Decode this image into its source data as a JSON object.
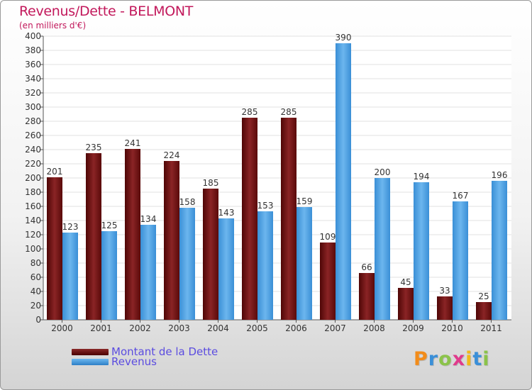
{
  "chart_data": {
    "type": "bar",
    "title": "Revenus/Dette - BELMONT",
    "subtitle": "(en milliers d'€)",
    "categories": [
      "2000",
      "2001",
      "2002",
      "2003",
      "2004",
      "2005",
      "2006",
      "2007",
      "2008",
      "2009",
      "2010",
      "2011"
    ],
    "series": [
      {
        "name": "Montant de la Dette",
        "color": "#7a1416",
        "values": [
          201,
          235,
          241,
          224,
          185,
          285,
          285,
          109,
          66,
          45,
          33,
          25
        ]
      },
      {
        "name": "Revenus",
        "color": "#4a9fe2",
        "values": [
          123,
          125,
          134,
          158,
          143,
          153,
          159,
          390,
          200,
          194,
          167,
          196
        ]
      }
    ],
    "yticks": [
      0,
      20,
      40,
      60,
      80,
      100,
      120,
      140,
      160,
      180,
      200,
      220,
      240,
      260,
      280,
      300,
      320,
      340,
      360,
      380,
      400
    ],
    "ylim": [
      0,
      400
    ],
    "grid": true,
    "legend_position": "bottom-left"
  },
  "logo": {
    "letters": [
      "P",
      "r",
      "o",
      "x",
      "i",
      "t",
      "i"
    ],
    "colors": [
      "#f28c1a",
      "#3a8fd8",
      "#8bc34a",
      "#e03a8c",
      "#f2b81a",
      "#3a8fd8",
      "#8bc34a"
    ]
  }
}
